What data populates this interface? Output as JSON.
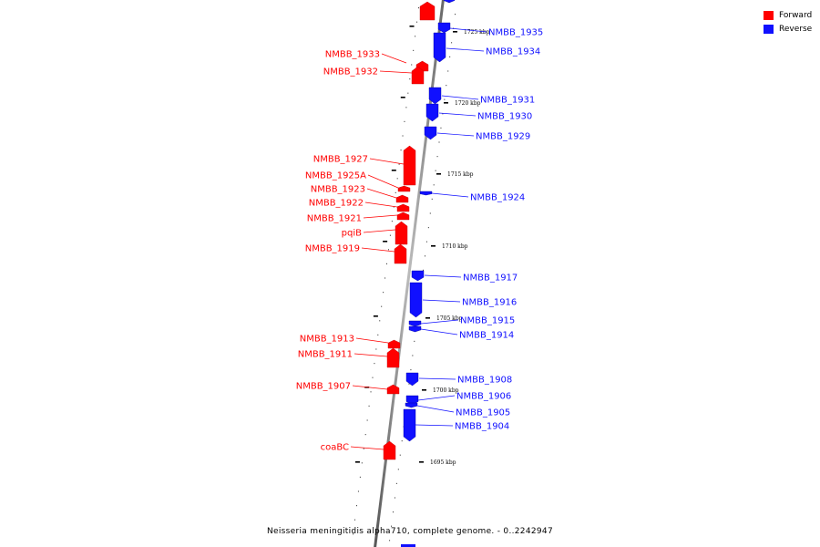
{
  "caption": "Neisseria meningitidis alpha710, complete genome. - 0..2242947",
  "legend": [
    {
      "label": "Forward",
      "color": "#ff0000"
    },
    {
      "label": "Reverse",
      "color": "#1010ff"
    }
  ],
  "kbp_ticks": [
    {
      "label": "1725 kbp"
    },
    {
      "label": "1720 kbp"
    },
    {
      "label": "1715 kbp"
    },
    {
      "label": "1710 kbp"
    },
    {
      "label": "1705 kbp"
    },
    {
      "label": "1700 kbp"
    },
    {
      "label": "1695 kbp"
    }
  ],
  "genes": {
    "forward": [
      "NMBB_1933",
      "NMBB_1932",
      "NMBB_1927",
      "NMBB_1925A",
      "NMBB_1923",
      "NMBB_1922",
      "NMBB_1921",
      "pqiB",
      "NMBB_1919",
      "NMBB_1913",
      "NMBB_1911",
      "NMBB_1907",
      "coaBC"
    ],
    "reverse": [
      "NMBB_1935",
      "NMBB_1934",
      "NMBB_1931",
      "NMBB_1930",
      "NMBB_1929",
      "NMBB_1924",
      "NMBB_1917",
      "NMBB_1916",
      "NMBB_1915",
      "NMBB_1914",
      "NMBB_1908",
      "NMBB_1906",
      "NMBB_1905",
      "NMBB_1904"
    ]
  }
}
